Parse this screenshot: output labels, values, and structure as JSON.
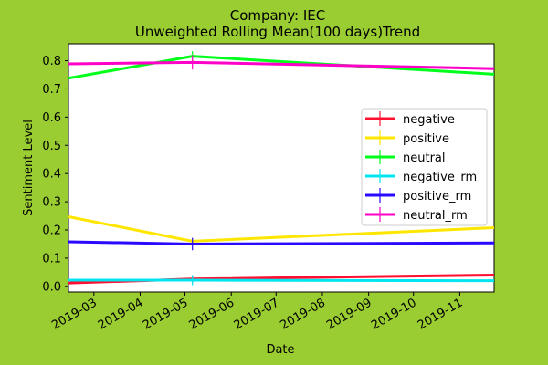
{
  "chart_data": {
    "type": "line",
    "title": "Company: IEC",
    "subtitle": "Unweighted Rolling Mean(100 days)Trend",
    "xlabel": "Date",
    "ylabel": "Sentiment Level",
    "x": [
      "2019-02-12",
      "2019-05-06",
      "2019-11-24"
    ],
    "xlim": [
      "2019-02-12",
      "2019-11-24"
    ],
    "ylim": [
      -0.02,
      0.86
    ],
    "yticks": [
      0.0,
      0.1,
      0.2,
      0.3,
      0.4,
      0.5,
      0.6,
      0.7,
      0.8
    ],
    "ytick_labels": [
      "0.0",
      "0.1",
      "0.2",
      "0.3",
      "0.4",
      "0.5",
      "0.6",
      "0.7",
      "0.8"
    ],
    "xticks": [
      "2019-03-01",
      "2019-04-01",
      "2019-05-01",
      "2019-06-01",
      "2019-07-01",
      "2019-08-01",
      "2019-09-01",
      "2019-10-01",
      "2019-11-01"
    ],
    "xtick_labels": [
      "2019-03",
      "2019-04",
      "2019-05",
      "2019-06",
      "2019-07",
      "2019-08",
      "2019-09",
      "2019-10",
      "2019-11"
    ],
    "errorbar_x": "2019-05-06",
    "legend_position": "center-right",
    "series": [
      {
        "name": "negative",
        "color": "#ff1030",
        "values": [
          0.012,
          0.026,
          0.04
        ],
        "err": 0.0
      },
      {
        "name": "positive",
        "color": "#ffe600",
        "values": [
          0.247,
          0.16,
          0.208
        ],
        "err": 0.0
      },
      {
        "name": "neutral",
        "color": "#00ff1a",
        "values": [
          0.738,
          0.816,
          0.752
        ],
        "err": 0.018
      },
      {
        "name": "negative_rm",
        "color": "#00e6f0",
        "values": [
          0.022,
          0.022,
          0.02
        ],
        "err": 0.018
      },
      {
        "name": "positive_rm",
        "color": "#2a0aff",
        "values": [
          0.158,
          0.15,
          0.154
        ],
        "err": 0.022
      },
      {
        "name": "neutral_rm",
        "color": "#ff00c8",
        "values": [
          0.789,
          0.794,
          0.772
        ],
        "err": 0.025
      }
    ]
  }
}
